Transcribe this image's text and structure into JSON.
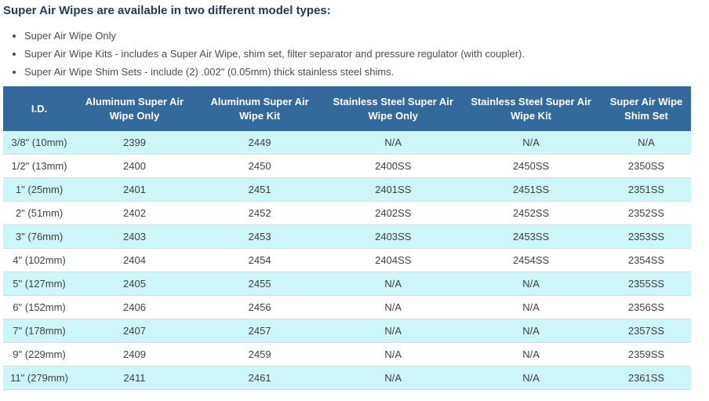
{
  "intro": {
    "heading": "Super Air Wipes are available in two different model types:",
    "bullets": [
      "Super Air Wipe Only",
      "Super Air Wipe Kits - includes a Super Air Wipe, shim set, filter separator and pressure regulator (with coupler).",
      "Super Air Wipe Shim Sets - include (2) .002\" (0.05mm) thick stainless steel shims."
    ]
  },
  "table": {
    "columns": [
      "I.D.",
      "Aluminum Super Air\nWipe Only",
      "Aluminum Super Air\nWipe Kit",
      "Stainless Steel Super Air\nWipe Only",
      "Stainless Steel Super Air\nWipe Kit",
      "Super Air Wipe\nShim Set"
    ],
    "rows": [
      [
        "3/8\" (10mm)",
        "2399",
        "2449",
        "N/A",
        "N/A",
        "N/A"
      ],
      [
        "1/2\" (13mm)",
        "2400",
        "2450",
        "2400SS",
        "2450SS",
        "2350SS"
      ],
      [
        "1\" (25mm)",
        "2401",
        "2451",
        "2401SS",
        "2451SS",
        "2351SS"
      ],
      [
        "2\" (51mm)",
        "2402",
        "2452",
        "2402SS",
        "2452SS",
        "2352SS"
      ],
      [
        "3\" (76mm)",
        "2403",
        "2453",
        "2403SS",
        "2453SS",
        "2353SS"
      ],
      [
        "4\" (102mm)",
        "2404",
        "2454",
        "2404SS",
        "2454SS",
        "2354SS"
      ],
      [
        "5\" (127mm)",
        "2405",
        "2455",
        "N/A",
        "N/A",
        "2355SS"
      ],
      [
        "6\" (152mm)",
        "2406",
        "2456",
        "N/A",
        "N/A",
        "2356SS"
      ],
      [
        "7\" (178mm)",
        "2407",
        "2457",
        "N/A",
        "N/A",
        "2357SS"
      ],
      [
        "9\" (229mm)",
        "2409",
        "2459",
        "N/A",
        "N/A",
        "2359SS"
      ],
      [
        "11\" (279mm)",
        "2411",
        "2461",
        "N/A",
        "N/A",
        "2361SS"
      ]
    ]
  },
  "colors": {
    "header_bg": "#34699B",
    "row_alt_bg": "#CDF6F9",
    "heading_color": "#233A54"
  }
}
